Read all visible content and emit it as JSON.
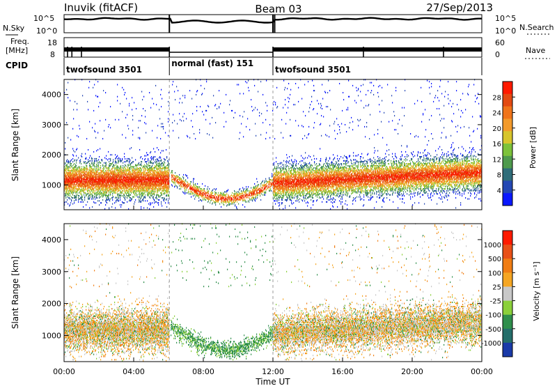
{
  "header": {
    "station": "Inuvik (fitACF)",
    "beam": "Beam 03",
    "date": "27/Sep/2013"
  },
  "status_panels": {
    "nsky_label": "N.Sky",
    "nsearch_label": "N.Search",
    "freq_label_1": "Freq.",
    "freq_label_2": "[MHz]",
    "nave_label": "Nave",
    "cpid_label": "CPID",
    "noise_left_ticks": [
      "10^5",
      "10^0"
    ],
    "noise_right_ticks": [
      "10^5",
      "10^0"
    ],
    "freq_left_ticks": [
      "18",
      "8"
    ],
    "freq_right_ticks": [
      "60",
      "0"
    ],
    "cpid_segments": [
      {
        "label": "twofsound 3501",
        "start": 0,
        "end": 6.05
      },
      {
        "label": "normal (fast) 151",
        "start": 6.05,
        "end": 12.0
      },
      {
        "label": "twofsound 3501",
        "start": 12.0,
        "end": 24
      }
    ]
  },
  "chart_data": [
    {
      "type": "heatmap",
      "name": "power",
      "ylabel": "Slant Range [km]",
      "y_ticks": [
        "1000",
        "2000",
        "3000",
        "4000"
      ],
      "ylim": [
        180,
        4500
      ],
      "xlim": [
        0,
        24
      ],
      "colorbar_label": "Power [dB]",
      "colorbar_ticks": [
        "4",
        "8",
        "12",
        "16",
        "20",
        "24",
        "28"
      ],
      "colorbar_colors": [
        "#0a18ff",
        "#2448b4",
        "#2f6d7a",
        "#4f9a4d",
        "#7dc23a",
        "#d7c52c",
        "#f39a2b",
        "#f0741a",
        "#e34a12",
        "#ff1a00"
      ]
    },
    {
      "type": "heatmap",
      "name": "velocity",
      "ylabel": "Slant Range [km]",
      "y_ticks": [
        "1000",
        "2000",
        "3000",
        "4000"
      ],
      "ylim": [
        180,
        4500
      ],
      "xlim": [
        0,
        24
      ],
      "colorbar_label": "Velocity [m s⁻¹]",
      "colorbar_ticks": [
        "1000",
        "500",
        "100",
        "25",
        "-25",
        "-100",
        "-500",
        "-1000"
      ],
      "colorbar_colors": [
        "#1a3aa8",
        "#246e6a",
        "#2f8f4c",
        "#8bd03a",
        "#c8c8c8",
        "#f5a623",
        "#f07d14",
        "#e85018",
        "#ff1a00"
      ]
    }
  ],
  "x_axis": {
    "label": "Time UT",
    "ticks": [
      "00:00",
      "04:00",
      "08:00",
      "12:00",
      "16:00",
      "20:00",
      "00:00"
    ]
  }
}
